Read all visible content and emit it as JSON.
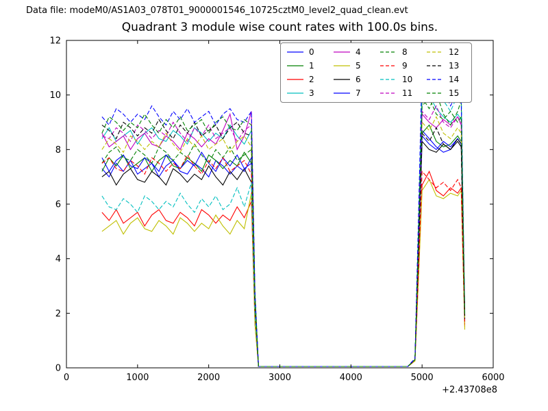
{
  "header": {
    "data_file_label": "Data file: modeM0/AS1A03_078T01_9000001546_10725cztM0_level2_quad_clean.evt"
  },
  "chart_data": {
    "type": "line",
    "title": "Quadrant 3 module wise count rates with 100.0s bins.",
    "xlabel": "",
    "ylabel": "",
    "x_offset_label": "+2.43708e8",
    "xlim": [
      0,
      6000
    ],
    "ylim": [
      0,
      12
    ],
    "xticks": [
      0,
      1000,
      2000,
      3000,
      4000,
      5000,
      6000
    ],
    "yticks": [
      0,
      2,
      4,
      6,
      8,
      10,
      12
    ],
    "grid": false,
    "legend_position": "upper center",
    "x": [
      500,
      600,
      700,
      800,
      900,
      1000,
      1100,
      1200,
      1300,
      1400,
      1500,
      1600,
      1700,
      1800,
      1900,
      2000,
      2100,
      2200,
      2300,
      2400,
      2500,
      2600,
      2650,
      2700,
      3000,
      3500,
      4000,
      4500,
      4800,
      4900,
      4950,
      5000,
      5100,
      5200,
      5300,
      5400,
      5500,
      5550,
      5600
    ],
    "series": [
      {
        "name": "0",
        "color": "#0000ff",
        "dash": "solid",
        "values": [
          7.3,
          7.0,
          7.5,
          7.2,
          7.6,
          7.1,
          7.3,
          7.5,
          7.0,
          7.4,
          7.6,
          7.2,
          7.1,
          7.5,
          7.3,
          7.0,
          7.6,
          7.4,
          7.1,
          7.4,
          7.2,
          7.7,
          2.2,
          0.05,
          0.05,
          0.05,
          0.05,
          0.05,
          0.05,
          0.3,
          4.4,
          8.7,
          8.4,
          8.1,
          7.9,
          8.0,
          8.4,
          8.2,
          1.8
        ]
      },
      {
        "name": "1",
        "color": "#008000",
        "dash": "solid",
        "values": [
          7.2,
          7.7,
          7.4,
          7.8,
          7.3,
          7.5,
          7.7,
          7.2,
          7.6,
          7.8,
          7.4,
          7.3,
          7.7,
          7.5,
          7.2,
          7.8,
          7.6,
          7.3,
          7.6,
          7.4,
          7.9,
          7.5,
          2.3,
          0.05,
          0.05,
          0.05,
          0.05,
          0.05,
          0.05,
          0.3,
          4.3,
          8.6,
          8.9,
          8.3,
          8.1,
          8.2,
          8.5,
          8.3,
          1.9
        ]
      },
      {
        "name": "2",
        "color": "#ff0000",
        "dash": "solid",
        "values": [
          5.7,
          5.4,
          5.8,
          5.3,
          5.5,
          5.7,
          5.2,
          5.6,
          5.8,
          5.4,
          5.3,
          5.7,
          5.5,
          5.2,
          5.8,
          5.6,
          5.3,
          5.6,
          5.4,
          5.9,
          5.5,
          6.1,
          1.6,
          0.05,
          0.05,
          0.05,
          0.05,
          0.05,
          0.05,
          0.25,
          3.4,
          6.7,
          7.2,
          6.5,
          6.3,
          6.6,
          6.4,
          6.6,
          1.5
        ]
      },
      {
        "name": "3",
        "color": "#00bfbf",
        "dash": "solid",
        "values": [
          8.4,
          8.8,
          8.3,
          8.5,
          8.7,
          8.2,
          8.6,
          8.8,
          8.4,
          8.3,
          8.7,
          8.5,
          8.2,
          8.8,
          8.6,
          8.3,
          8.6,
          8.4,
          8.9,
          8.5,
          8.2,
          8.7,
          2.5,
          0.05,
          0.05,
          0.05,
          0.05,
          0.05,
          0.05,
          0.3,
          5.2,
          10.4,
          10.0,
          9.5,
          9.2,
          9.0,
          9.3,
          9.1,
          1.9
        ]
      },
      {
        "name": "4",
        "color": "#bf00bf",
        "dash": "solid",
        "values": [
          8.6,
          8.1,
          8.3,
          8.5,
          8.0,
          8.4,
          8.6,
          8.2,
          8.1,
          8.5,
          8.3,
          8.0,
          8.6,
          8.4,
          8.1,
          8.4,
          8.2,
          8.7,
          9.3,
          8.0,
          8.5,
          9.4,
          2.6,
          0.05,
          0.05,
          0.05,
          0.05,
          0.05,
          0.05,
          0.3,
          4.7,
          9.3,
          9.0,
          8.8,
          9.1,
          8.9,
          9.2,
          8.9,
          1.8
        ]
      },
      {
        "name": "5",
        "color": "#bfbf00",
        "dash": "solid",
        "values": [
          5.0,
          5.2,
          5.4,
          4.9,
          5.3,
          5.5,
          5.1,
          5.0,
          5.4,
          5.2,
          4.9,
          5.5,
          5.3,
          5.0,
          5.3,
          5.1,
          5.6,
          5.2,
          4.9,
          5.4,
          5.1,
          6.4,
          1.6,
          0.05,
          0.05,
          0.05,
          0.05,
          0.05,
          0.05,
          0.25,
          3.3,
          6.5,
          6.9,
          6.3,
          6.2,
          6.4,
          6.3,
          6.5,
          1.4
        ]
      },
      {
        "name": "6",
        "color": "#000000",
        "dash": "solid",
        "values": [
          7.0,
          7.2,
          6.7,
          7.1,
          7.3,
          6.9,
          6.8,
          7.2,
          7.0,
          6.7,
          7.3,
          7.1,
          6.8,
          7.1,
          6.9,
          7.4,
          7.0,
          6.7,
          7.2,
          6.9,
          7.3,
          6.8,
          2.1,
          0.05,
          0.05,
          0.05,
          0.05,
          0.05,
          0.05,
          0.3,
          4.2,
          8.3,
          8.0,
          7.9,
          8.2,
          8.0,
          8.3,
          8.1,
          1.7
        ]
      },
      {
        "name": "7",
        "color": "#0000ff",
        "dash": "solid",
        "values": [
          7.7,
          7.2,
          7.6,
          7.8,
          7.4,
          7.3,
          7.7,
          7.5,
          7.2,
          7.8,
          7.6,
          7.3,
          7.6,
          7.4,
          7.9,
          7.5,
          7.2,
          7.7,
          7.4,
          7.8,
          7.3,
          7.5,
          2.3,
          0.05,
          0.05,
          0.05,
          0.05,
          0.05,
          0.05,
          0.3,
          4.3,
          8.5,
          8.2,
          8.0,
          8.3,
          8.1,
          8.4,
          8.2,
          1.8
        ]
      },
      {
        "name": "8",
        "color": "#008000",
        "dash": "dashed",
        "values": [
          7.5,
          7.9,
          8.1,
          7.7,
          7.6,
          8.0,
          7.8,
          7.5,
          8.1,
          7.9,
          7.6,
          7.9,
          7.7,
          8.2,
          7.8,
          7.5,
          8.0,
          7.7,
          8.1,
          7.6,
          7.8,
          8.0,
          2.4,
          0.05,
          0.05,
          0.05,
          0.05,
          0.05,
          0.05,
          0.3,
          5.0,
          9.9,
          9.5,
          10.1,
          9.3,
          8.9,
          9.4,
          9.8,
          2.0
        ]
      },
      {
        "name": "9",
        "color": "#ff0000",
        "dash": "dashed",
        "values": [
          7.5,
          7.7,
          7.3,
          7.2,
          7.6,
          7.4,
          7.1,
          7.7,
          7.5,
          7.2,
          7.5,
          7.3,
          7.8,
          7.4,
          7.1,
          7.6,
          7.3,
          7.7,
          7.2,
          7.4,
          7.6,
          7.1,
          2.2,
          0.05,
          0.05,
          0.05,
          0.05,
          0.05,
          0.05,
          0.3,
          3.6,
          7.2,
          6.9,
          6.6,
          6.8,
          6.5,
          6.9,
          6.6,
          1.6
        ]
      },
      {
        "name": "10",
        "color": "#00bfbf",
        "dash": "dashed",
        "values": [
          6.3,
          5.9,
          5.8,
          6.2,
          6.0,
          5.7,
          6.3,
          6.1,
          5.8,
          6.1,
          5.9,
          6.4,
          6.0,
          5.7,
          6.2,
          5.9,
          6.3,
          5.8,
          6.0,
          6.6,
          5.9,
          6.8,
          2.0,
          0.05,
          0.05,
          0.05,
          0.05,
          0.05,
          0.05,
          0.3,
          5.3,
          10.5,
          10.2,
          10.6,
          9.8,
          9.4,
          10.0,
          10.3,
          2.0
        ]
      },
      {
        "name": "11",
        "color": "#bf00bf",
        "dash": "dashed",
        "values": [
          8.5,
          8.4,
          8.8,
          8.6,
          8.3,
          8.9,
          8.7,
          8.4,
          8.7,
          8.5,
          9.0,
          8.6,
          8.3,
          8.8,
          8.5,
          8.9,
          8.4,
          8.6,
          8.8,
          8.3,
          8.7,
          8.9,
          2.6,
          0.05,
          0.05,
          0.05,
          0.05,
          0.05,
          0.05,
          0.3,
          4.7,
          9.4,
          9.1,
          9.6,
          9.0,
          8.8,
          9.2,
          9.0,
          1.9
        ]
      },
      {
        "name": "12",
        "color": "#bfbf00",
        "dash": "dashed",
        "values": [
          8.0,
          8.4,
          8.2,
          7.9,
          8.5,
          8.3,
          8.0,
          8.3,
          8.1,
          8.6,
          8.2,
          7.9,
          8.4,
          8.1,
          8.5,
          8.0,
          8.2,
          8.4,
          7.9,
          8.3,
          8.5,
          8.1,
          2.5,
          0.05,
          0.05,
          0.05,
          0.05,
          0.05,
          0.05,
          0.3,
          4.5,
          9.0,
          8.7,
          9.2,
          8.6,
          8.4,
          8.8,
          8.6,
          1.8
        ]
      },
      {
        "name": "13",
        "color": "#000000",
        "dash": "dashed",
        "values": [
          8.9,
          8.7,
          8.4,
          9.0,
          8.8,
          8.5,
          8.8,
          8.6,
          9.1,
          8.7,
          8.4,
          8.9,
          8.6,
          9.0,
          8.5,
          8.7,
          8.9,
          8.4,
          8.8,
          9.0,
          8.6,
          8.5,
          2.5,
          0.05,
          0.05,
          0.05,
          0.05,
          0.05,
          0.05,
          0.3,
          4.3,
          8.6,
          8.3,
          8.8,
          8.2,
          8.0,
          8.4,
          8.2,
          1.8
        ]
      },
      {
        "name": "14",
        "color": "#0000ff",
        "dash": "dashed",
        "values": [
          9.2,
          8.9,
          9.5,
          9.3,
          9.0,
          9.3,
          9.1,
          9.6,
          9.2,
          8.9,
          9.4,
          9.1,
          9.5,
          9.0,
          9.2,
          9.4,
          8.9,
          9.3,
          9.5,
          9.1,
          9.0,
          9.4,
          2.8,
          0.05,
          0.05,
          0.05,
          0.05,
          0.05,
          0.05,
          0.35,
          5.6,
          11.1,
          10.6,
          9.9,
          10.2,
          9.6,
          10.1,
          9.8,
          2.0
        ]
      },
      {
        "name": "15",
        "color": "#008000",
        "dash": "dashed",
        "values": [
          8.6,
          9.2,
          9.0,
          8.7,
          9.0,
          8.8,
          9.3,
          8.9,
          8.6,
          9.1,
          8.8,
          9.2,
          8.7,
          8.9,
          9.1,
          8.6,
          9.0,
          9.2,
          8.8,
          8.7,
          9.1,
          8.9,
          2.7,
          0.05,
          0.05,
          0.05,
          0.05,
          0.05,
          0.05,
          0.3,
          4.8,
          9.6,
          9.9,
          9.3,
          9.1,
          9.4,
          9.0,
          9.2,
          1.9
        ]
      }
    ]
  }
}
